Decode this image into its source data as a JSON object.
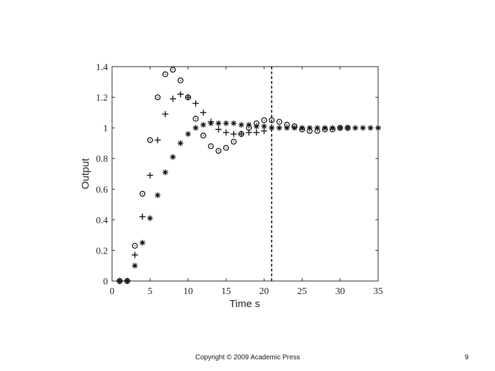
{
  "chart_data": {
    "type": "scatter",
    "xlabel": "Time s",
    "ylabel": "Output",
    "xlim": [
      0,
      35
    ],
    "ylim": [
      0,
      1.4
    ],
    "xticks": [
      0,
      5,
      10,
      15,
      20,
      25,
      30,
      35
    ],
    "yticks": [
      0,
      0.2,
      0.4,
      0.6,
      0.8,
      1,
      1.2,
      1.4
    ],
    "grid": false,
    "vline": {
      "x": 21,
      "style": "dashed"
    },
    "series": [
      {
        "marker": "circle",
        "x": [
          1,
          2,
          3,
          4,
          5,
          6,
          7,
          8,
          9,
          10,
          11,
          12,
          13,
          14,
          15,
          16,
          17,
          18,
          19,
          20,
          21,
          22,
          23,
          24,
          25,
          26,
          27,
          28,
          29,
          30,
          31
        ],
        "values": [
          0,
          0,
          0.23,
          0.57,
          0.92,
          1.2,
          1.35,
          1.38,
          1.31,
          1.2,
          1.06,
          0.95,
          0.88,
          0.85,
          0.87,
          0.91,
          0.96,
          1.0,
          1.03,
          1.05,
          1.05,
          1.04,
          1.02,
          1.01,
          0.99,
          0.98,
          0.98,
          0.99,
          0.99,
          1.0,
          1.0
        ]
      },
      {
        "marker": "plus",
        "x": [
          1,
          2,
          3,
          4,
          5,
          6,
          7,
          8,
          9,
          10,
          11,
          12,
          13,
          14,
          15,
          16,
          17,
          18,
          19,
          20
        ],
        "values": [
          0,
          0,
          0.17,
          0.42,
          0.69,
          0.92,
          1.09,
          1.19,
          1.22,
          1.2,
          1.16,
          1.1,
          1.04,
          0.99,
          0.97,
          0.96,
          0.96,
          0.97,
          0.97,
          0.98
        ]
      },
      {
        "marker": "asterisk",
        "x": [
          1,
          2,
          3,
          4,
          5,
          6,
          7,
          8,
          9,
          10,
          11,
          12,
          13,
          14,
          15,
          16,
          17,
          18,
          19,
          20,
          21,
          22,
          23,
          24,
          25,
          26,
          27,
          28,
          29,
          30,
          31,
          32,
          33,
          34,
          35
        ],
        "values": [
          0,
          0,
          0.1,
          0.25,
          0.41,
          0.56,
          0.71,
          0.81,
          0.9,
          0.96,
          1.0,
          1.02,
          1.03,
          1.03,
          1.03,
          1.03,
          1.02,
          1.02,
          1.01,
          1.01,
          1.0,
          1.0,
          1.0,
          1.0,
          1.0,
          1.0,
          1.0,
          1.0,
          1.0,
          1.0,
          1.0,
          1.0,
          1.0,
          1.0,
          1.0
        ]
      }
    ]
  },
  "footer": {
    "copyright": "Copyright © 2009 Academic Press",
    "page_number": "9"
  }
}
